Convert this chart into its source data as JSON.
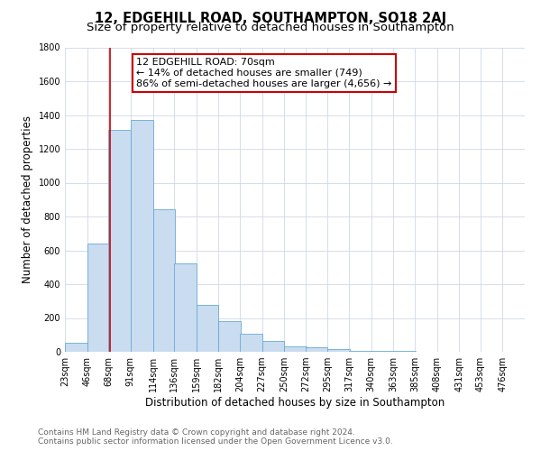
{
  "title": "12, EDGEHILL ROAD, SOUTHAMPTON, SO18 2AJ",
  "subtitle": "Size of property relative to detached houses in Southampton",
  "xlabel": "Distribution of detached houses by size in Southampton",
  "ylabel": "Number of detached properties",
  "bin_labels": [
    "23sqm",
    "46sqm",
    "68sqm",
    "91sqm",
    "114sqm",
    "136sqm",
    "159sqm",
    "182sqm",
    "204sqm",
    "227sqm",
    "250sqm",
    "272sqm",
    "295sqm",
    "317sqm",
    "340sqm",
    "363sqm",
    "385sqm",
    "408sqm",
    "431sqm",
    "453sqm",
    "476sqm"
  ],
  "bin_edges": [
    23,
    46,
    68,
    91,
    114,
    136,
    159,
    182,
    204,
    227,
    250,
    272,
    295,
    317,
    340,
    363,
    385,
    408,
    431,
    453,
    476
  ],
  "bin_width": 23,
  "bar_heights": [
    55,
    640,
    1310,
    1370,
    845,
    525,
    280,
    180,
    105,
    65,
    30,
    25,
    15,
    8,
    5,
    3,
    2,
    1,
    1,
    0,
    0
  ],
  "bar_color": "#c9dcf0",
  "bar_edge_color": "#6aaad4",
  "property_line_x": 70,
  "property_line_color": "#cc0000",
  "annotation_text": "12 EDGEHILL ROAD: 70sqm\n← 14% of detached houses are smaller (749)\n86% of semi-detached houses are larger (4,656) →",
  "annotation_box_edge_color": "#cc0000",
  "ylim": [
    0,
    1800
  ],
  "yticks": [
    0,
    200,
    400,
    600,
    800,
    1000,
    1200,
    1400,
    1600,
    1800
  ],
  "footnote_line1": "Contains HM Land Registry data © Crown copyright and database right 2024.",
  "footnote_line2": "Contains public sector information licensed under the Open Government Licence v3.0.",
  "background_color": "#ffffff",
  "grid_color": "#d0d8e8",
  "title_fontsize": 10.5,
  "subtitle_fontsize": 9.5,
  "axis_label_fontsize": 8.5,
  "tick_fontsize": 7,
  "annotation_fontsize": 8,
  "footnote_fontsize": 6.5
}
